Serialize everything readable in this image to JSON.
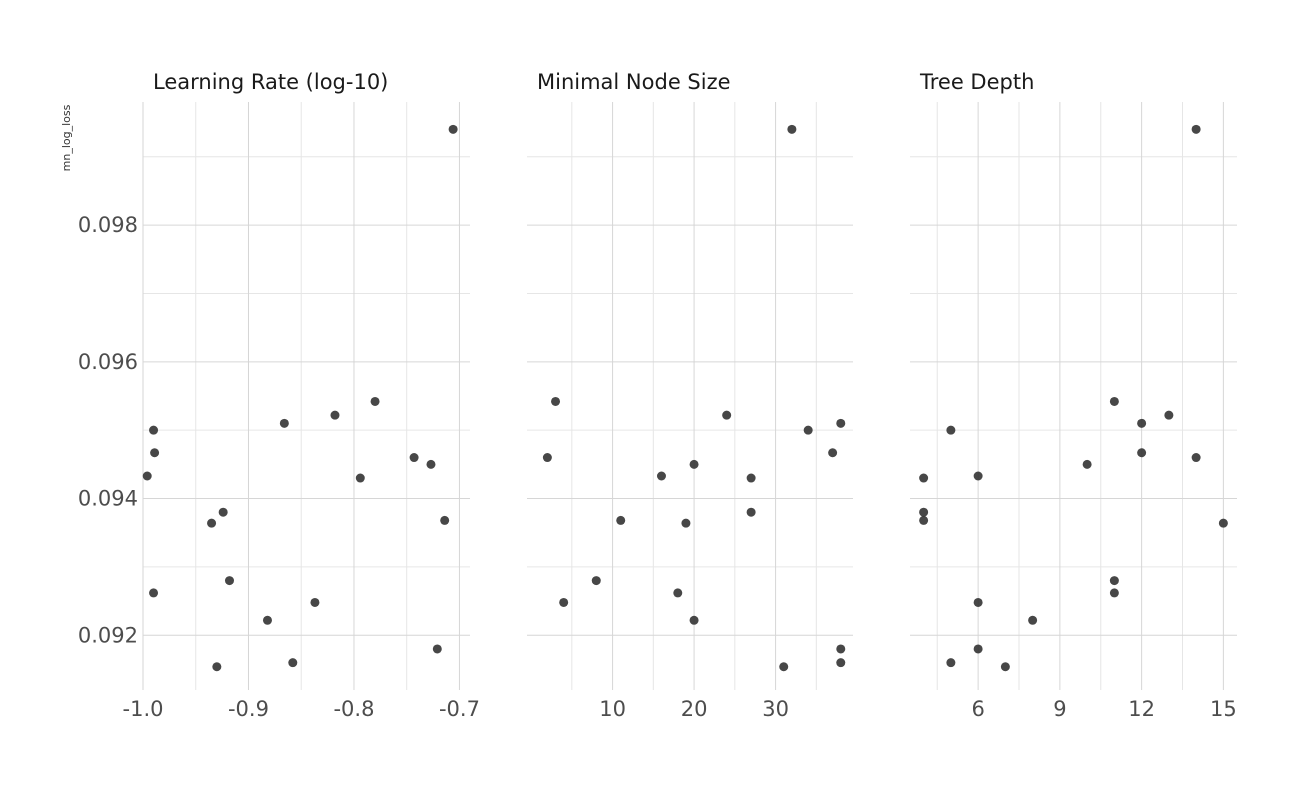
{
  "chart_data": {
    "type": "scatter",
    "ylabel": "mn_log_loss",
    "ylim": [
      0.0912,
      0.0998
    ],
    "yticks": [
      0.092,
      0.094,
      0.096,
      0.098
    ],
    "ytick_labels": [
      "0.092",
      "0.094",
      "0.096",
      "0.098"
    ],
    "y": [
      0.0994,
      0.09542,
      0.09522,
      0.0951,
      0.095,
      0.09467,
      0.0946,
      0.0945,
      0.09433,
      0.0943,
      0.0938,
      0.09368,
      0.09364,
      0.0928,
      0.09262,
      0.09248,
      0.09222,
      0.0918,
      0.0916,
      0.09154
    ],
    "panels": [
      {
        "title": "Learning Rate (log-10)",
        "xlim": [
          -1.0,
          -0.69
        ],
        "xticks": [
          -1.0,
          -0.9,
          -0.8,
          -0.7
        ],
        "xtick_labels": [
          "-1.0",
          "-0.9",
          "-0.8",
          "-0.7"
        ],
        "x": [
          -0.706,
          -0.78,
          -0.818,
          -0.866,
          -0.99,
          -0.989,
          -0.743,
          -0.727,
          -0.996,
          -0.794,
          -0.924,
          -0.714,
          -0.935,
          -0.918,
          -0.99,
          -0.837,
          -0.882,
          -0.721,
          -0.858,
          -0.93
        ]
      },
      {
        "title": "Minimal Node Size",
        "xlim": [
          -0.5,
          39.5
        ],
        "xticks": [
          10,
          20,
          30
        ],
        "xtick_labels": [
          "10",
          "20",
          "30"
        ],
        "x": [
          32,
          3,
          24,
          38,
          34,
          37,
          2,
          20,
          16,
          27,
          27,
          11,
          19,
          8,
          18,
          4,
          20,
          38,
          38,
          31
        ]
      },
      {
        "title": "Tree Depth",
        "xlim": [
          3.5,
          15.5
        ],
        "xticks": [
          6,
          9,
          12,
          15
        ],
        "xtick_labels": [
          "6",
          "9",
          "12",
          "15"
        ],
        "x": [
          14,
          11,
          13,
          12,
          5,
          12,
          14,
          10,
          6,
          4,
          4,
          4,
          15,
          11,
          11,
          6,
          8,
          6,
          5,
          7
        ]
      }
    ]
  }
}
